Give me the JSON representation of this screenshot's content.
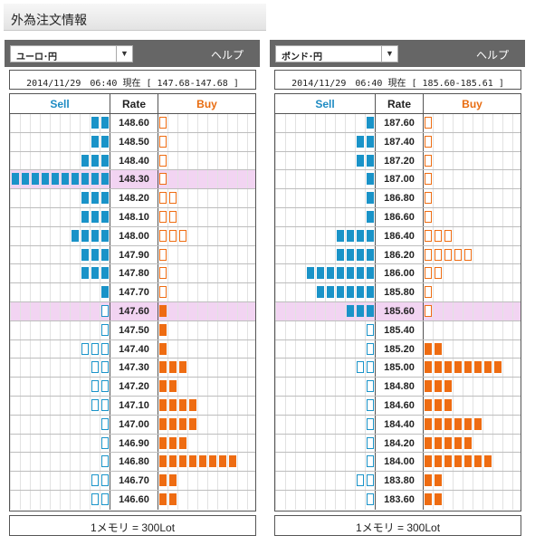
{
  "page_title": "外為注文情報",
  "panels": [
    {
      "pair": "ユーロ･円",
      "help": "ヘルプ",
      "info": "2014/11/29　06:40 現在 [ 147.68-147.68 ]",
      "headers": {
        "sell": "Sell",
        "rate": "Rate",
        "buy": "Buy"
      },
      "footer": "1メモリ = 300Lot",
      "current_rate": "147.60",
      "rows": [
        {
          "rate": "148.60",
          "sell": 2,
          "sell_style": "filled",
          "buy": 1,
          "buy_style": "outline"
        },
        {
          "rate": "148.50",
          "sell": 2,
          "sell_style": "filled",
          "buy": 1,
          "buy_style": "outline"
        },
        {
          "rate": "148.40",
          "sell": 3,
          "sell_style": "filled",
          "buy": 1,
          "buy_style": "outline"
        },
        {
          "rate": "148.30",
          "sell": 10,
          "sell_style": "filled",
          "buy": 1,
          "buy_style": "outline",
          "highlight": true
        },
        {
          "rate": "148.20",
          "sell": 3,
          "sell_style": "filled",
          "buy": 2,
          "buy_style": "outline"
        },
        {
          "rate": "148.10",
          "sell": 3,
          "sell_style": "filled",
          "buy": 2,
          "buy_style": "outline"
        },
        {
          "rate": "148.00",
          "sell": 4,
          "sell_style": "filled",
          "buy": 3,
          "buy_style": "outline"
        },
        {
          "rate": "147.90",
          "sell": 3,
          "sell_style": "filled",
          "buy": 1,
          "buy_style": "outline"
        },
        {
          "rate": "147.80",
          "sell": 3,
          "sell_style": "filled",
          "buy": 1,
          "buy_style": "outline"
        },
        {
          "rate": "147.70",
          "sell": 1,
          "sell_style": "filled",
          "buy": 1,
          "buy_style": "outline"
        },
        {
          "rate": "147.60",
          "sell": 1,
          "sell_style": "outline",
          "buy": 1,
          "buy_style": "filled",
          "highlight": true
        },
        {
          "rate": "147.50",
          "sell": 1,
          "sell_style": "outline",
          "buy": 1,
          "buy_style": "filled"
        },
        {
          "rate": "147.40",
          "sell": 3,
          "sell_style": "outline",
          "buy": 1,
          "buy_style": "filled"
        },
        {
          "rate": "147.30",
          "sell": 2,
          "sell_style": "outline",
          "buy": 3,
          "buy_style": "filled"
        },
        {
          "rate": "147.20",
          "sell": 2,
          "sell_style": "outline",
          "buy": 2,
          "buy_style": "filled"
        },
        {
          "rate": "147.10",
          "sell": 2,
          "sell_style": "outline",
          "buy": 4,
          "buy_style": "filled"
        },
        {
          "rate": "147.00",
          "sell": 1,
          "sell_style": "outline",
          "buy": 4,
          "buy_style": "filled"
        },
        {
          "rate": "146.90",
          "sell": 1,
          "sell_style": "outline",
          "buy": 3,
          "buy_style": "filled"
        },
        {
          "rate": "146.80",
          "sell": 1,
          "sell_style": "outline",
          "buy": 8,
          "buy_style": "filled"
        },
        {
          "rate": "146.70",
          "sell": 2,
          "sell_style": "outline",
          "buy": 2,
          "buy_style": "filled"
        },
        {
          "rate": "146.60",
          "sell": 2,
          "sell_style": "outline",
          "buy": 2,
          "buy_style": "filled"
        }
      ]
    },
    {
      "pair": "ポンド･円",
      "help": "ヘルプ",
      "info": "2014/11/29　06:40 現在 [ 185.60-185.61 ]",
      "headers": {
        "sell": "Sell",
        "rate": "Rate",
        "buy": "Buy"
      },
      "footer": "1メモリ = 300Lot",
      "current_rate": "185.60",
      "rows": [
        {
          "rate": "187.60",
          "sell": 1,
          "sell_style": "filled",
          "buy": 1,
          "buy_style": "outline"
        },
        {
          "rate": "187.40",
          "sell": 2,
          "sell_style": "filled",
          "buy": 1,
          "buy_style": "outline"
        },
        {
          "rate": "187.20",
          "sell": 2,
          "sell_style": "filled",
          "buy": 1,
          "buy_style": "outline"
        },
        {
          "rate": "187.00",
          "sell": 1,
          "sell_style": "filled",
          "buy": 1,
          "buy_style": "outline"
        },
        {
          "rate": "186.80",
          "sell": 1,
          "sell_style": "filled",
          "buy": 1,
          "buy_style": "outline"
        },
        {
          "rate": "186.60",
          "sell": 1,
          "sell_style": "filled",
          "buy": 1,
          "buy_style": "outline"
        },
        {
          "rate": "186.40",
          "sell": 4,
          "sell_style": "filled",
          "buy": 3,
          "buy_style": "outline"
        },
        {
          "rate": "186.20",
          "sell": 4,
          "sell_style": "filled",
          "buy": 5,
          "buy_style": "outline"
        },
        {
          "rate": "186.00",
          "sell": 7,
          "sell_style": "filled",
          "buy": 2,
          "buy_style": "outline"
        },
        {
          "rate": "185.80",
          "sell": 6,
          "sell_style": "filled",
          "buy": 1,
          "buy_style": "outline"
        },
        {
          "rate": "185.60",
          "sell": 3,
          "sell_style": "filled",
          "buy": 1,
          "buy_style": "outline",
          "highlight": true
        },
        {
          "rate": "185.40",
          "sell": 1,
          "sell_style": "outline",
          "buy": 0,
          "buy_style": "filled"
        },
        {
          "rate": "185.20",
          "sell": 1,
          "sell_style": "outline",
          "buy": 2,
          "buy_style": "filled"
        },
        {
          "rate": "185.00",
          "sell": 2,
          "sell_style": "outline",
          "buy": 8,
          "buy_style": "filled"
        },
        {
          "rate": "184.80",
          "sell": 1,
          "sell_style": "outline",
          "buy": 3,
          "buy_style": "filled"
        },
        {
          "rate": "184.60",
          "sell": 1,
          "sell_style": "outline",
          "buy": 3,
          "buy_style": "filled"
        },
        {
          "rate": "184.40",
          "sell": 1,
          "sell_style": "outline",
          "buy": 6,
          "buy_style": "filled"
        },
        {
          "rate": "184.20",
          "sell": 1,
          "sell_style": "outline",
          "buy": 5,
          "buy_style": "filled"
        },
        {
          "rate": "184.00",
          "sell": 1,
          "sell_style": "outline",
          "buy": 7,
          "buy_style": "filled"
        },
        {
          "rate": "183.80",
          "sell": 2,
          "sell_style": "outline",
          "buy": 2,
          "buy_style": "filled"
        },
        {
          "rate": "183.60",
          "sell": 1,
          "sell_style": "outline",
          "buy": 2,
          "buy_style": "filled"
        }
      ]
    }
  ]
}
